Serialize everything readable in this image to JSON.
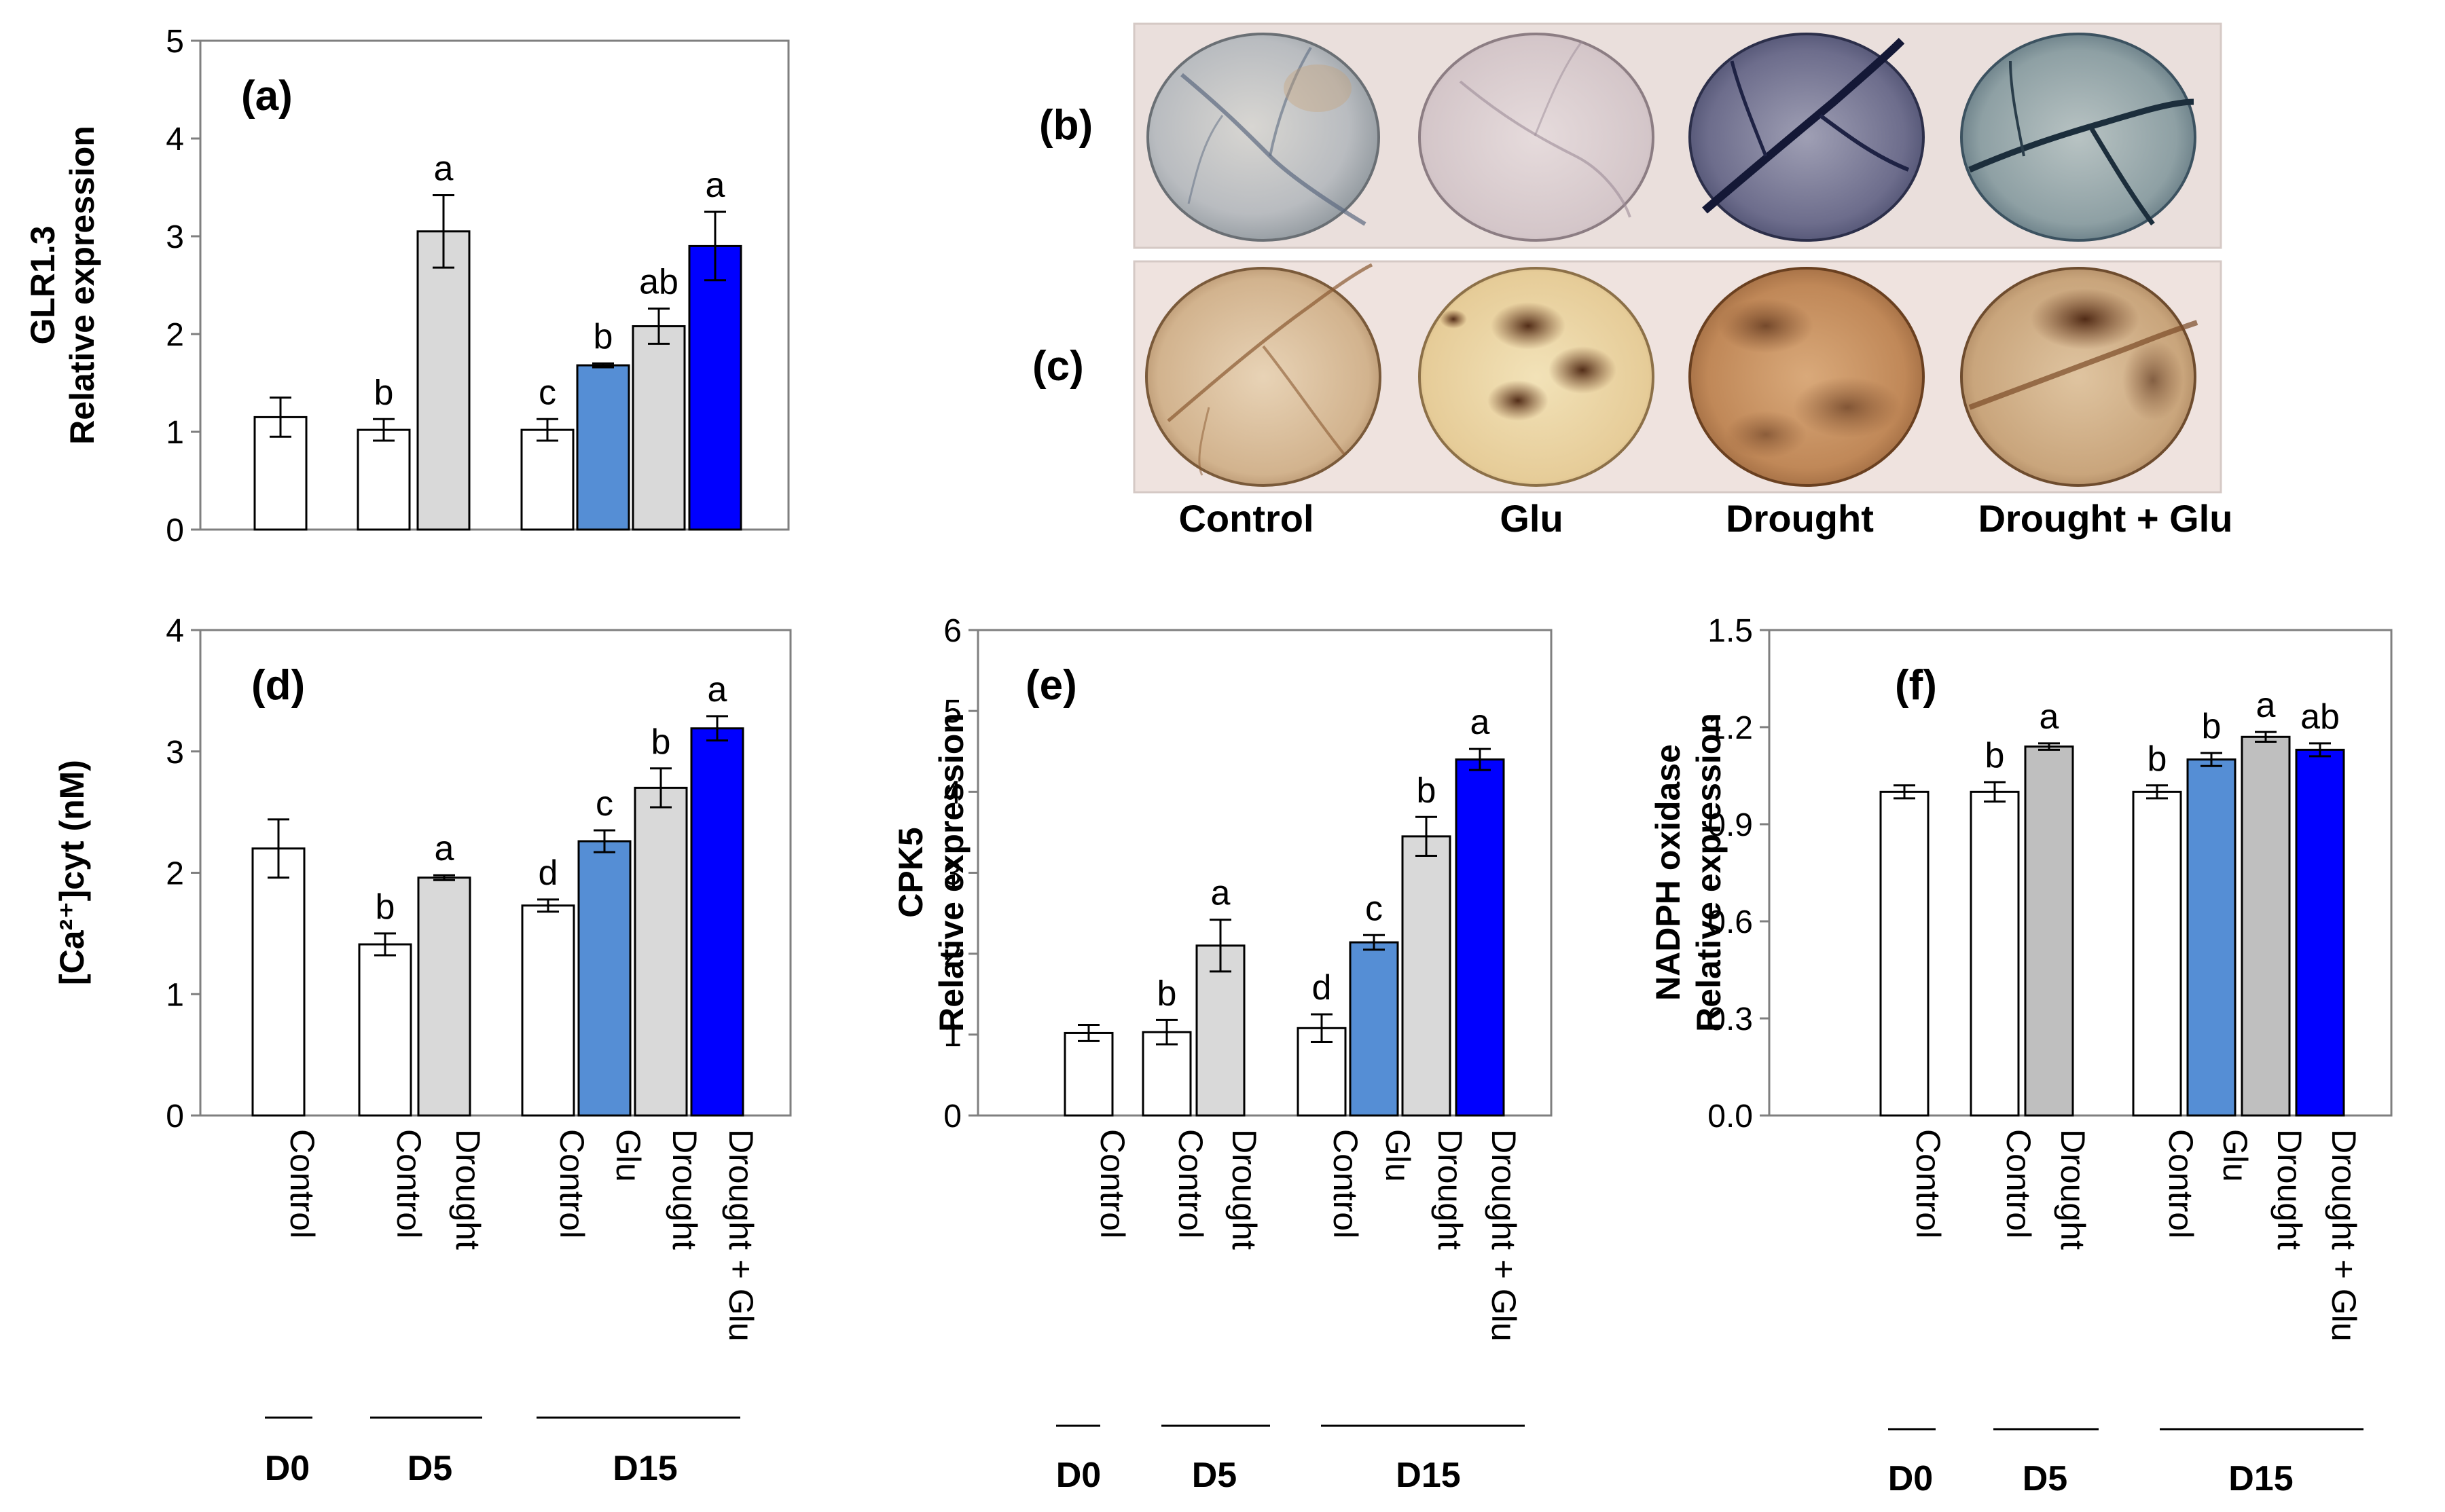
{
  "panels": {
    "b": {
      "letter": "(b)"
    },
    "c": {
      "letter": "(c)"
    }
  },
  "photo_labels": [
    "Control",
    "Glu",
    "Drought",
    "Drought + Glu"
  ],
  "colors": {
    "white_bar": "#ffffff",
    "light_gray": "#d9d9d9",
    "gray": "#bfbfbf",
    "light_blue": "#558ed5",
    "dark_blue": "#0000ff",
    "axis": "#7f7f7f",
    "photo_b_frame": "#eadfdc",
    "photo_c_frame": "#efe3df"
  },
  "chart_data": [
    {
      "id": "a",
      "type": "bar",
      "panel_label": "(a)",
      "title": "",
      "xlabel": "",
      "ylabel": [
        "GLR1.3",
        "Relative expression"
      ],
      "ylim": [
        0,
        5
      ],
      "yticks": [
        "0",
        "1",
        "2",
        "3",
        "4",
        "5"
      ],
      "categories": [],
      "groups": [],
      "bars": [
        {
          "value": 1.15,
          "err": 0.2,
          "sig": "",
          "color": "white"
        },
        {
          "value": 1.02,
          "err": 0.11,
          "sig": "b",
          "color": "white"
        },
        {
          "value": 3.05,
          "err": 0.37,
          "sig": "a",
          "color": "light_gray"
        },
        {
          "value": 1.02,
          "err": 0.11,
          "sig": "c",
          "color": "white"
        },
        {
          "value": 1.68,
          "err": 0.02,
          "sig": "b",
          "color": "light_blue"
        },
        {
          "value": 2.08,
          "err": 0.18,
          "sig": "ab",
          "color": "light_gray"
        },
        {
          "value": 2.9,
          "err": 0.35,
          "sig": "a",
          "color": "dark_blue"
        }
      ]
    },
    {
      "id": "d",
      "type": "bar",
      "panel_label": "(d)",
      "title": "",
      "xlabel": "",
      "ylabel": [
        "[Ca²⁺]cyt (nM)"
      ],
      "ylim": [
        0,
        4
      ],
      "yticks": [
        "0",
        "1",
        "2",
        "3",
        "4"
      ],
      "categories": [
        "Control",
        "Control",
        "Drought",
        "Control",
        "Glu",
        "Drought",
        "Drought + Glu"
      ],
      "groups": [
        "D0",
        "D5",
        "D15"
      ],
      "bars": [
        {
          "value": 2.2,
          "err": 0.24,
          "sig": "",
          "color": "white"
        },
        {
          "value": 1.41,
          "err": 0.09,
          "sig": "b",
          "color": "white"
        },
        {
          "value": 1.96,
          "err": 0.02,
          "sig": "a",
          "color": "light_gray"
        },
        {
          "value": 1.73,
          "err": 0.05,
          "sig": "d",
          "color": "white"
        },
        {
          "value": 2.26,
          "err": 0.09,
          "sig": "c",
          "color": "light_blue"
        },
        {
          "value": 2.7,
          "err": 0.16,
          "sig": "b",
          "color": "light_gray"
        },
        {
          "value": 3.19,
          "err": 0.1,
          "sig": "a",
          "color": "dark_blue"
        }
      ]
    },
    {
      "id": "e",
      "type": "bar",
      "panel_label": "(e)",
      "title": "",
      "xlabel": "",
      "ylabel": [
        "CPK5",
        "Relative expression"
      ],
      "ylim": [
        0,
        6
      ],
      "yticks": [
        "0",
        "1",
        "2",
        "3",
        "4",
        "5",
        "6"
      ],
      "categories": [
        "Control",
        "Control",
        "Drought",
        "Control",
        "Glu",
        "Drought",
        "Drought + Glu"
      ],
      "groups": [
        "D0",
        "D5",
        "D15"
      ],
      "bars": [
        {
          "value": 1.02,
          "err": 0.1,
          "sig": "",
          "color": "white"
        },
        {
          "value": 1.03,
          "err": 0.15,
          "sig": "b",
          "color": "white"
        },
        {
          "value": 2.1,
          "err": 0.32,
          "sig": "a",
          "color": "light_gray"
        },
        {
          "value": 1.08,
          "err": 0.17,
          "sig": "d",
          "color": "white"
        },
        {
          "value": 2.14,
          "err": 0.09,
          "sig": "c",
          "color": "light_blue"
        },
        {
          "value": 3.45,
          "err": 0.24,
          "sig": "b",
          "color": "light_gray"
        },
        {
          "value": 4.4,
          "err": 0.13,
          "sig": "a",
          "color": "dark_blue"
        }
      ]
    },
    {
      "id": "f",
      "type": "bar",
      "panel_label": "(f)",
      "title": "",
      "xlabel": "",
      "ylabel": [
        "NADPH oxidase",
        "Relative expression"
      ],
      "ylim": [
        0,
        1.5
      ],
      "yticks": [
        "0.0",
        "0.3",
        "0.6",
        "0.9",
        "1.2",
        "1.5"
      ],
      "categories": [
        "Control",
        "Control",
        "Drought",
        "Control",
        "Glu",
        "Drought",
        "Drought + Glu"
      ],
      "groups": [
        "D0",
        "D5",
        "D15"
      ],
      "bars": [
        {
          "value": 1.0,
          "err": 0.02,
          "sig": "",
          "color": "white"
        },
        {
          "value": 1.0,
          "err": 0.03,
          "sig": "b",
          "color": "white"
        },
        {
          "value": 1.14,
          "err": 0.01,
          "sig": "a",
          "color": "gray"
        },
        {
          "value": 1.0,
          "err": 0.02,
          "sig": "b",
          "color": "white"
        },
        {
          "value": 1.1,
          "err": 0.02,
          "sig": "b",
          "color": "light_blue"
        },
        {
          "value": 1.17,
          "err": 0.015,
          "sig": "a",
          "color": "gray"
        },
        {
          "value": 1.13,
          "err": 0.02,
          "sig": "ab",
          "color": "dark_blue"
        }
      ]
    }
  ]
}
